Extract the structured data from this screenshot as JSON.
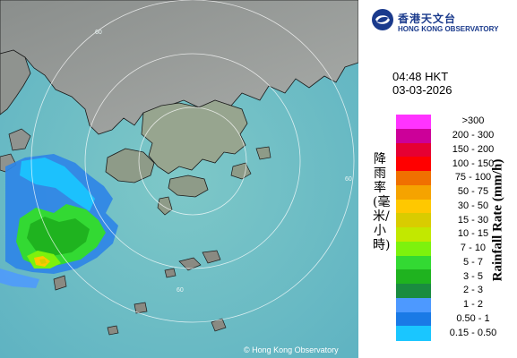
{
  "header": {
    "agency_cn": "香港天文台",
    "agency_en": "HONG KONG OBSERVATORY"
  },
  "timestamp": {
    "time": "04:48 HKT",
    "date": "03-03-2026"
  },
  "map": {
    "copyright": "© Hong Kong Observatory",
    "range_labels": [
      "60",
      "60",
      "60"
    ]
  },
  "legend": {
    "label_cn": "降雨率(毫米/小時)",
    "label_en": "Rainfall Rate (mm/h)",
    "items": [
      {
        "label": ">300",
        "color": "#ff33ff"
      },
      {
        "label": "200 - 300",
        "color": "#cc0099"
      },
      {
        "label": "150 - 200",
        "color": "#e60033"
      },
      {
        "label": "100 - 150",
        "color": "#ff0000"
      },
      {
        "label": "75 - 100",
        "color": "#f07000"
      },
      {
        "label": "50 - 75",
        "color": "#f5a300"
      },
      {
        "label": "30 - 50",
        "color": "#ffc800"
      },
      {
        "label": "15 - 30",
        "color": "#d9cc00"
      },
      {
        "label": "10 - 15",
        "color": "#c2e800"
      },
      {
        "label": "7 - 10",
        "color": "#7df20d"
      },
      {
        "label": "5 - 7",
        "color": "#33d933"
      },
      {
        "label": "3 - 5",
        "color": "#1fb31f"
      },
      {
        "label": "2 - 3",
        "color": "#1a8c40"
      },
      {
        "label": "1 - 2",
        "color": "#4d99ff"
      },
      {
        "label": "0.50 - 1",
        "color": "#1a7ae6"
      },
      {
        "label": "0.15 - 0.50",
        "color": "#1ac6ff"
      }
    ]
  }
}
